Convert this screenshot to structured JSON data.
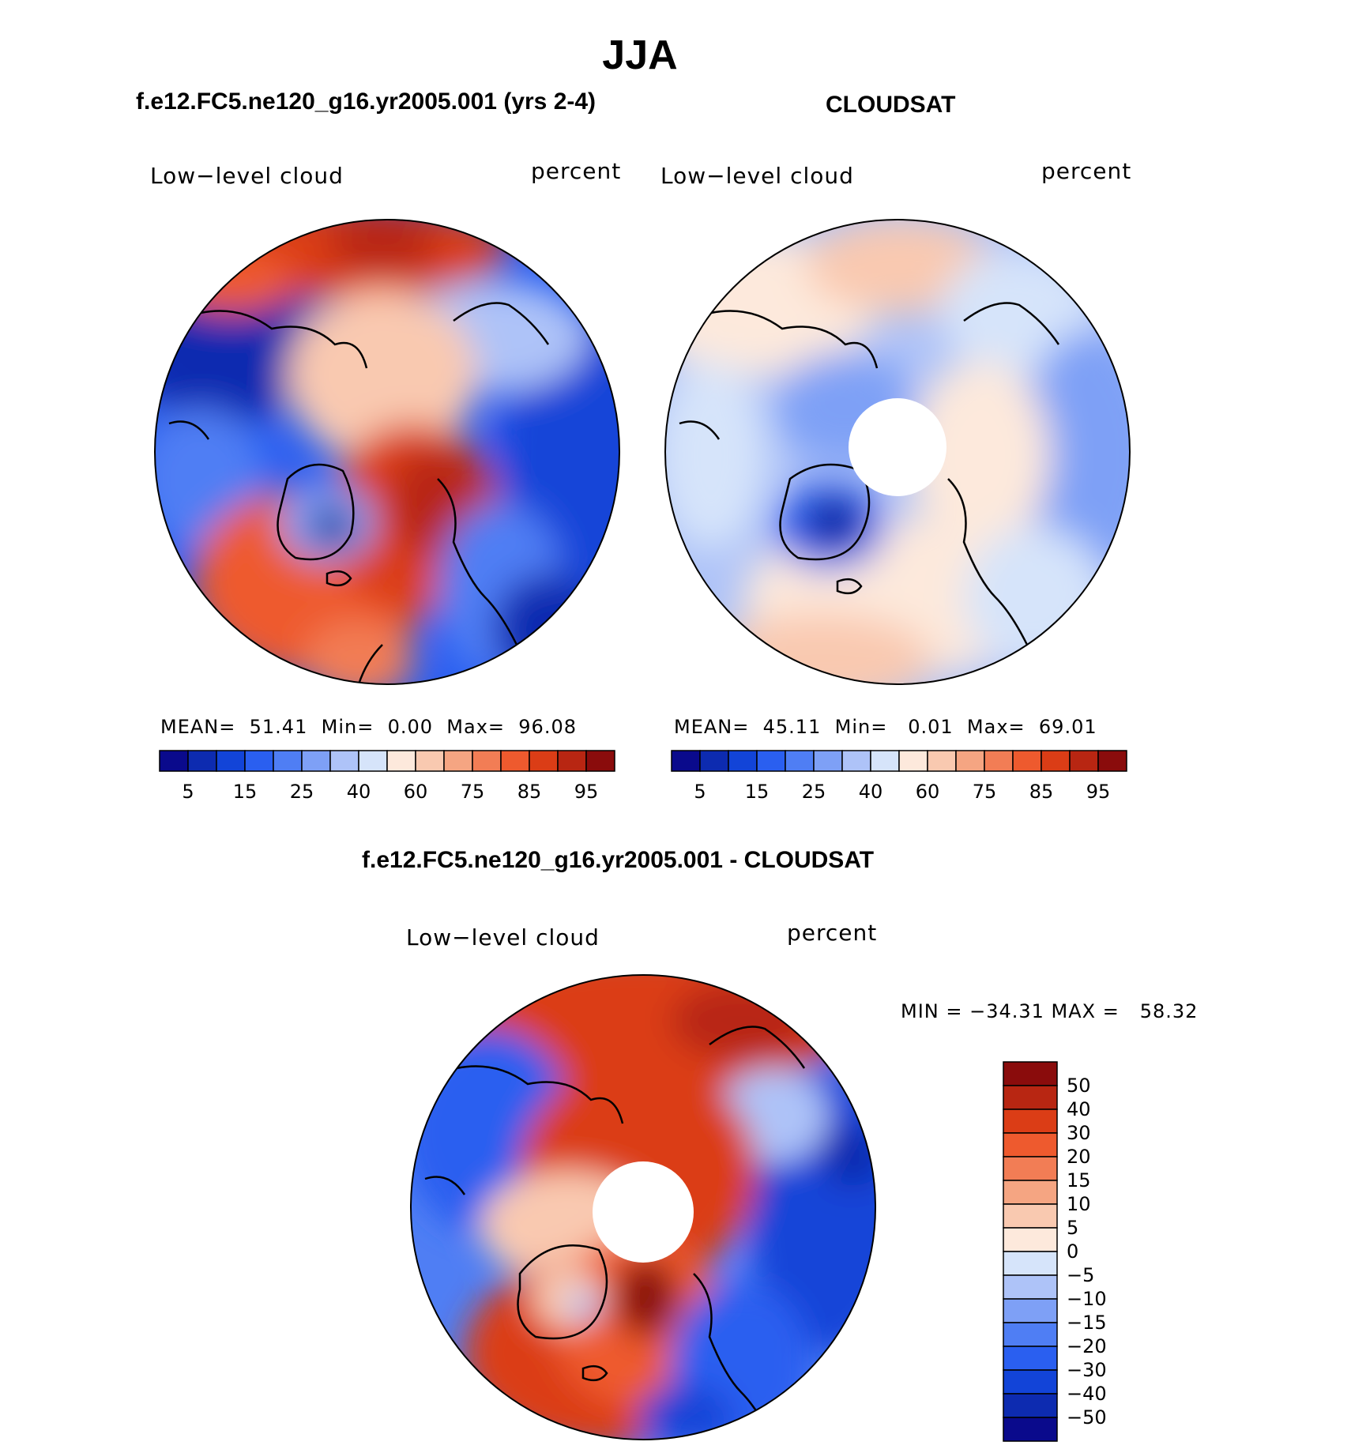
{
  "page": {
    "title": "JJA"
  },
  "panels": [
    {
      "id": "model",
      "title": "f.e12.FC5.ne120_g16.yr2005.001 (yrs 2-4)",
      "left_label": "Low−level cloud",
      "right_label": "percent",
      "stats": {
        "mean_label": "MEAN=",
        "mean": "51.41",
        "min_label": "Min=",
        "min": "0.00",
        "max_label": "Max=",
        "max": "96.08"
      },
      "has_polar_hole": false
    },
    {
      "id": "obs",
      "title": "CLOUDSAT",
      "left_label": "Low−level cloud",
      "right_label": "percent",
      "stats": {
        "mean_label": "MEAN=",
        "mean": "45.11",
        "min_label": "Min=",
        "min": "0.01",
        "max_label": "Max=",
        "max": "69.01"
      },
      "has_polar_hole": true
    },
    {
      "id": "diff",
      "title": "f.e12.FC5.ne120_g16.yr2005.001 - CLOUDSAT",
      "left_label": "Low−level cloud",
      "right_label": "percent",
      "minmax": "MIN = −34.31 MAX =   58.32",
      "has_polar_hole": true
    }
  ],
  "colorbar_top": {
    "colors": [
      "#0a0a8c",
      "#0d2bb0",
      "#1244d8",
      "#2a5ff0",
      "#4f7ef4",
      "#7ea0f6",
      "#aec3f8",
      "#d6e4fa",
      "#fde9dc",
      "#f9c9b0",
      "#f5a582",
      "#f27d55",
      "#ee5a2e",
      "#db3d16",
      "#b82612",
      "#8a0c0c"
    ],
    "tick_labels": [
      "5",
      "15",
      "25",
      "40",
      "60",
      "75",
      "85",
      "95"
    ]
  },
  "colorbar_diff": {
    "colors": [
      "#8a0c0c",
      "#b82612",
      "#db3d16",
      "#ee5a2e",
      "#f27d55",
      "#f5a582",
      "#f9c9b0",
      "#fde9dc",
      "#d6e4fa",
      "#aec3f8",
      "#7ea0f6",
      "#4f7ef4",
      "#2a5ff0",
      "#1244d8",
      "#0d2bb0",
      "#0a0a8c"
    ],
    "tick_labels": [
      "50",
      "40",
      "30",
      "20",
      "15",
      "10",
      "5",
      "0",
      "−5",
      "−10",
      "−15",
      "−20",
      "−30",
      "−40",
      "−50"
    ]
  }
}
